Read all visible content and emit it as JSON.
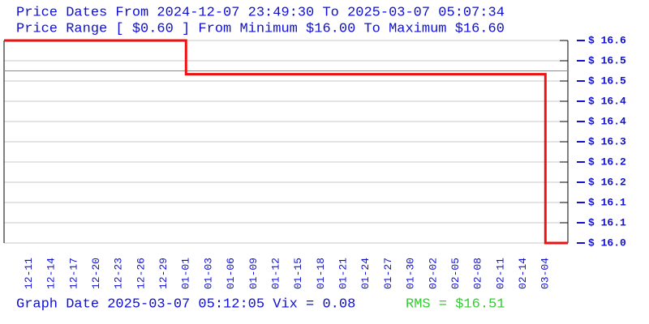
{
  "chart_data": {
    "type": "line",
    "title": "Price Dates From 2024-12-07 23:49:30 To 2025-03-07 05:07:34",
    "subtitle": "Price Range [ $0.60 ] From Minimum $16.00 To Maximum $16.60",
    "footer": "Graph Date 2025-03-07 05:12:05 Vix = 0.08",
    "rms_label": "RMS = $16.51",
    "rms": 16.51,
    "rms_color": "#33cc33",
    "xlim": [
      -1.1,
      24
    ],
    "xticks": [
      {
        "value": 0,
        "label": "12-11"
      },
      {
        "value": 1,
        "label": "12-14"
      },
      {
        "value": 2,
        "label": "12-17"
      },
      {
        "value": 3,
        "label": "12-20"
      },
      {
        "value": 4,
        "label": "12-23"
      },
      {
        "value": 5,
        "label": "12-26"
      },
      {
        "value": 6,
        "label": "12-29"
      },
      {
        "value": 7,
        "label": "01-01"
      },
      {
        "value": 8,
        "label": "01-03"
      },
      {
        "value": 9,
        "label": "01-06"
      },
      {
        "value": 10,
        "label": "01-09"
      },
      {
        "value": 11,
        "label": "01-12"
      },
      {
        "value": 12,
        "label": "01-15"
      },
      {
        "value": 13,
        "label": "01-18"
      },
      {
        "value": 14,
        "label": "01-21"
      },
      {
        "value": 15,
        "label": "01-24"
      },
      {
        "value": 16,
        "label": "01-27"
      },
      {
        "value": 17,
        "label": "01-30"
      },
      {
        "value": 18,
        "label": "02-02"
      },
      {
        "value": 19,
        "label": "02-05"
      },
      {
        "value": 20,
        "label": "02-08"
      },
      {
        "value": 21,
        "label": "02-11"
      },
      {
        "value": 22,
        "label": "02-14"
      },
      {
        "value": 23,
        "label": "03-04"
      }
    ],
    "ylim": [
      16.0,
      16.6
    ],
    "yticks": [
      {
        "value": 16.6,
        "label": "$ 16.6"
      },
      {
        "value": 16.54,
        "label": "$ 16.5"
      },
      {
        "value": 16.48,
        "label": "$ 16.5"
      },
      {
        "value": 16.42,
        "label": "$ 16.4"
      },
      {
        "value": 16.36,
        "label": "$ 16.4"
      },
      {
        "value": 16.3,
        "label": "$ 16.3"
      },
      {
        "value": 16.24,
        "label": "$ 16.2"
      },
      {
        "value": 16.18,
        "label": "$ 16.2"
      },
      {
        "value": 16.12,
        "label": "$ 16.1"
      },
      {
        "value": 16.06,
        "label": "$ 16.1"
      },
      {
        "value": 16.0,
        "label": "$ 16.0"
      }
    ],
    "grid": true,
    "series": [
      {
        "color": "#ee1111",
        "x": [
          -1.1,
          7,
          7,
          23,
          23,
          24
        ],
        "values": [
          16.6,
          16.6,
          16.5,
          16.5,
          16.0,
          16.0
        ]
      }
    ]
  }
}
